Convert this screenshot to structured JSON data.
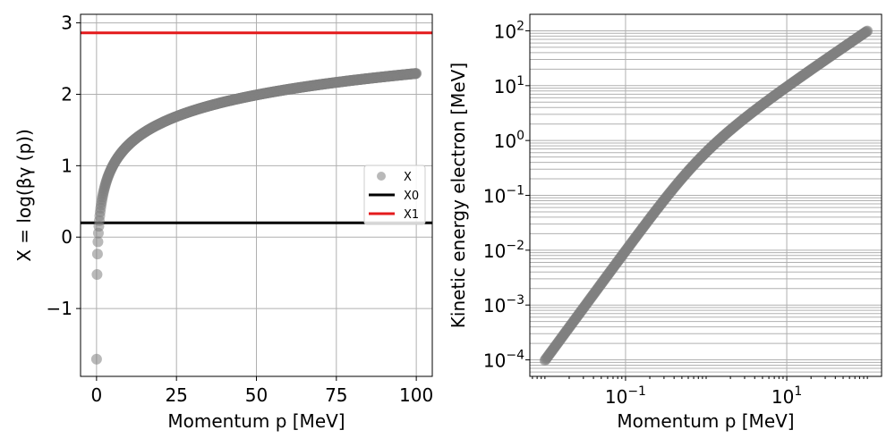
{
  "chart_data": [
    {
      "type": "scatter",
      "xlabel": "Momentum p [MeV]",
      "ylabel": "X = log(βγ (p))",
      "xlim": [
        -5,
        105
      ],
      "ylim": [
        -1.95,
        3.12
      ],
      "xticks": [
        0,
        25,
        50,
        75,
        100
      ],
      "xtick_labels": [
        "0",
        "25",
        "50",
        "75",
        "100"
      ],
      "yticks": [
        -1,
        0,
        1,
        2,
        3
      ],
      "ytick_labels": [
        "−1",
        "0",
        "1",
        "2",
        "3"
      ],
      "grid": true,
      "legend_position": "center-right",
      "series": [
        {
          "name": "X",
          "kind": "points",
          "color": "#808080",
          "x_range": [
            0.01,
            100
          ],
          "y_formula": "log10(p / 0.511)"
        },
        {
          "name": "X0",
          "kind": "hline",
          "color": "#000000",
          "y": 0.2
        },
        {
          "name": "X1",
          "kind": "hline",
          "color": "#e41a1c",
          "y": 2.86
        }
      ]
    },
    {
      "type": "scatter",
      "xlabel": "Momentum p [MeV]",
      "ylabel": "Kinetic energy electron [MeV]",
      "x_scale": "log",
      "y_scale": "log",
      "xlim": [
        0.0065,
        150
      ],
      "ylim": [
        5e-05,
        200
      ],
      "xticks": [
        0.1,
        10
      ],
      "xtick_base": "10",
      "xtick_exponents": [
        "−1",
        "1"
      ],
      "yticks": [
        0.0001,
        0.001,
        0.01,
        0.1,
        1,
        10,
        100
      ],
      "ytick_base": "10",
      "ytick_exponents": [
        "−4",
        "−3",
        "−2",
        "−1",
        "0",
        "1",
        "2"
      ],
      "grid": true,
      "series": [
        {
          "kind": "points",
          "color": "#808080",
          "x_range": [
            0.01,
            100
          ],
          "y_formula": "sqrt(p^2 + 0.511^2) - 0.511"
        }
      ]
    }
  ],
  "legend": {
    "entries": [
      {
        "label": "X",
        "color": "#808080",
        "kind": "marker"
      },
      {
        "label": "X0",
        "color": "#000000",
        "kind": "line"
      },
      {
        "label": "X1",
        "color": "#e41a1c",
        "kind": "line"
      }
    ]
  }
}
